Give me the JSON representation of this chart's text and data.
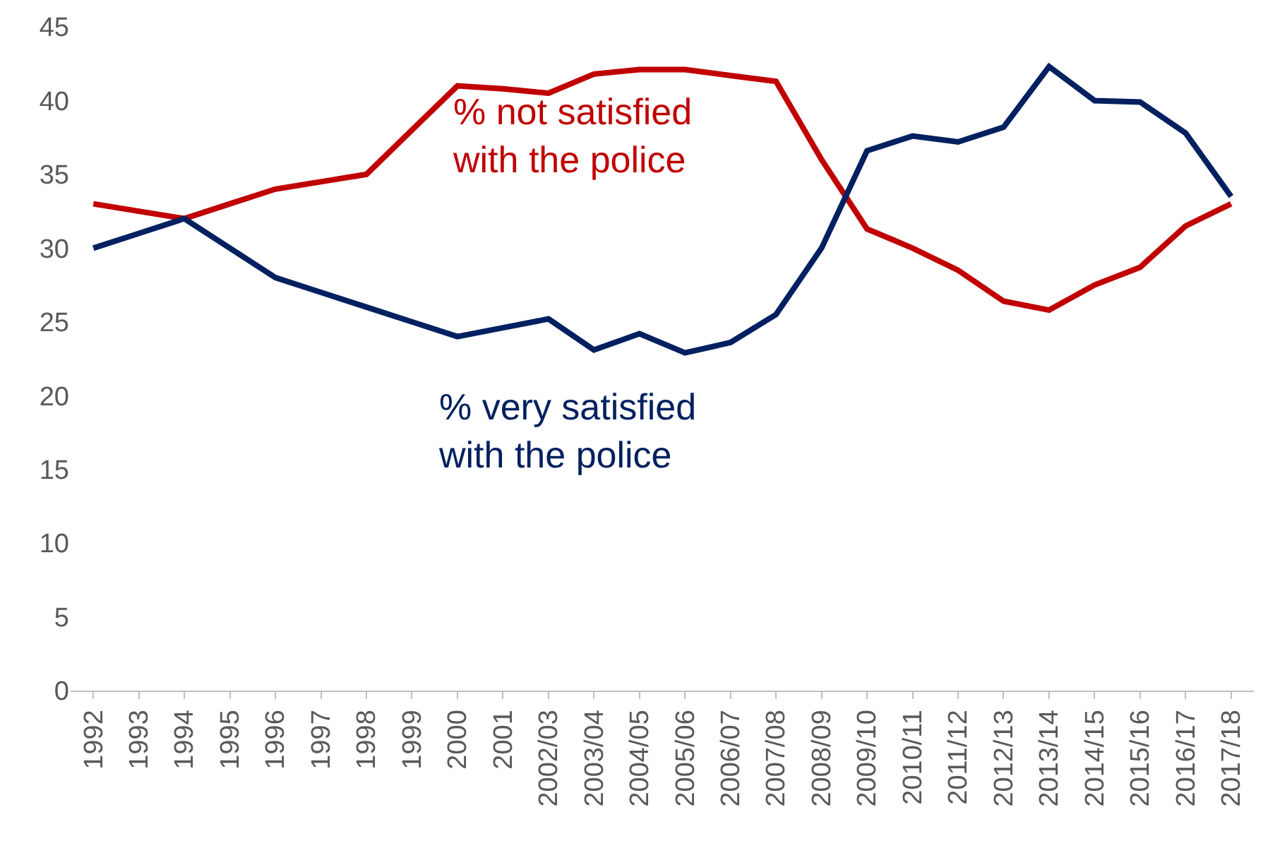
{
  "chart_data": {
    "type": "line",
    "categories": [
      "1992",
      "1993",
      "1994",
      "1995",
      "1996",
      "1997",
      "1998",
      "1999",
      "2000",
      "2001",
      "2002/03",
      "2003/04",
      "2004/05",
      "2005/06",
      "2006/07",
      "2007/08",
      "2008/09",
      "2009/10",
      "2010/11",
      "2011/12",
      "2012/13",
      "2013/14",
      "2014/15",
      "2015/16",
      "2016/17",
      "2017/18"
    ],
    "series": [
      {
        "name": "% not satisfied\nwith the police",
        "color": "#c00000",
        "values": [
          33,
          32.5,
          32,
          33,
          34,
          34.5,
          35,
          38,
          41,
          40.8,
          40.5,
          41.8,
          42.1,
          42.1,
          41.7,
          41.3,
          36,
          31.3,
          30,
          28.5,
          26.4,
          25.8,
          27.5,
          28.7,
          31.5,
          33
        ]
      },
      {
        "name": "% very satisfied\nwith the police",
        "color": "#002060",
        "values": [
          30,
          31,
          32,
          30,
          28,
          27,
          26,
          25,
          24,
          24.6,
          25.2,
          23.1,
          24.2,
          22.9,
          23.6,
          25.5,
          30,
          36.6,
          37.6,
          37.2,
          38.2,
          42.3,
          40,
          39.9,
          37.8,
          33.5
        ]
      }
    ],
    "ylim": [
      0,
      45
    ],
    "yticks": [
      0,
      5,
      10,
      15,
      20,
      25,
      30,
      35,
      40,
      45
    ],
    "legend": false,
    "marker": "none",
    "line_style": "solid"
  }
}
